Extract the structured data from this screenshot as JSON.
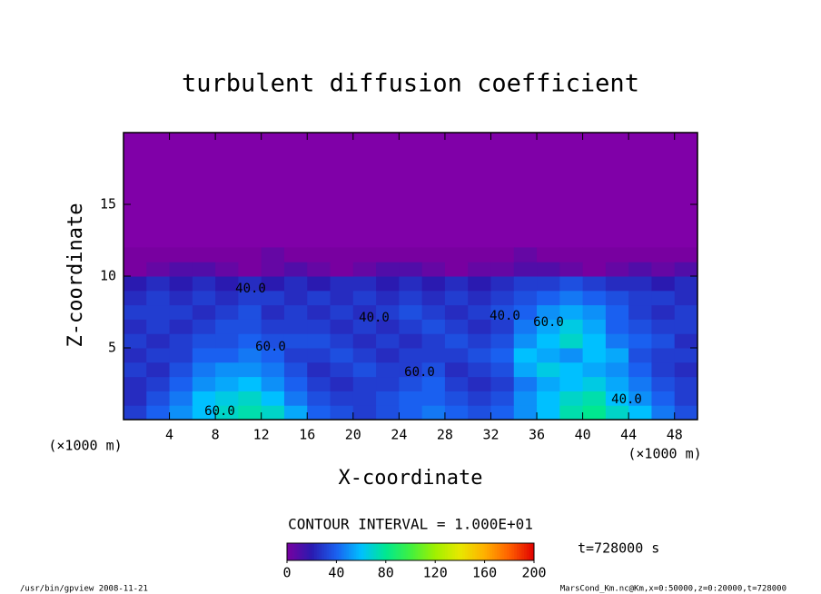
{
  "chart_data": {
    "type": "heatmap",
    "title": "turbulent diffusion coefficient",
    "x_label": "X-coordinate",
    "y_label": "Z-coordinate",
    "x_unit": "(×1000 m)",
    "y_unit": "(×1000 m)",
    "xlim": [
      0,
      50
    ],
    "ylim": [
      0,
      20
    ],
    "xticks": [
      4,
      8,
      12,
      16,
      20,
      24,
      28,
      32,
      36,
      40,
      44,
      48
    ],
    "yticks": [
      5,
      10,
      15
    ],
    "x": [
      1,
      3,
      5,
      7,
      9,
      11,
      13,
      15,
      17,
      19,
      21,
      23,
      25,
      27,
      29,
      31,
      33,
      35,
      37,
      39,
      41,
      43,
      45,
      47,
      49
    ],
    "z": [
      0.5,
      1.5,
      2.5,
      3.5,
      4.5,
      5.5,
      6.5,
      7.5,
      8.5,
      9.5,
      10.5,
      11.5
    ],
    "values": [
      [
        30,
        40,
        50,
        60,
        70,
        75,
        70,
        55,
        40,
        35,
        30,
        35,
        40,
        45,
        40,
        35,
        40,
        50,
        60,
        75,
        80,
        70,
        60,
        45,
        35
      ],
      [
        25,
        35,
        45,
        60,
        65,
        70,
        60,
        45,
        35,
        30,
        30,
        35,
        40,
        40,
        35,
        30,
        35,
        50,
        60,
        70,
        75,
        60,
        50,
        40,
        30
      ],
      [
        25,
        30,
        40,
        50,
        55,
        60,
        50,
        40,
        30,
        25,
        30,
        30,
        35,
        40,
        30,
        25,
        30,
        45,
        55,
        60,
        65,
        55,
        45,
        35,
        30
      ],
      [
        30,
        25,
        35,
        45,
        50,
        50,
        45,
        35,
        25,
        30,
        35,
        30,
        30,
        35,
        25,
        30,
        35,
        55,
        65,
        60,
        55,
        50,
        40,
        30,
        25
      ],
      [
        25,
        30,
        30,
        40,
        40,
        45,
        40,
        30,
        30,
        35,
        30,
        25,
        30,
        30,
        30,
        35,
        40,
        60,
        55,
        50,
        60,
        55,
        35,
        30,
        30
      ],
      [
        30,
        25,
        30,
        35,
        35,
        40,
        35,
        35,
        35,
        30,
        25,
        30,
        25,
        30,
        35,
        30,
        35,
        50,
        60,
        70,
        60,
        45,
        40,
        35,
        25
      ],
      [
        25,
        30,
        25,
        30,
        35,
        35,
        30,
        30,
        30,
        25,
        30,
        25,
        30,
        35,
        30,
        25,
        30,
        45,
        55,
        65,
        55,
        40,
        35,
        30,
        30
      ],
      [
        30,
        30,
        30,
        25,
        30,
        35,
        25,
        30,
        25,
        30,
        25,
        30,
        35,
        30,
        25,
        30,
        35,
        40,
        50,
        55,
        50,
        40,
        30,
        25,
        30
      ],
      [
        25,
        30,
        25,
        30,
        25,
        30,
        30,
        25,
        30,
        25,
        30,
        25,
        30,
        25,
        30,
        25,
        30,
        35,
        40,
        45,
        40,
        35,
        30,
        30,
        25
      ],
      [
        20,
        25,
        20,
        25,
        20,
        25,
        20,
        25,
        20,
        25,
        25,
        20,
        25,
        20,
        25,
        20,
        25,
        30,
        30,
        35,
        30,
        25,
        25,
        20,
        25
      ],
      [
        0,
        5,
        10,
        10,
        5,
        0,
        5,
        10,
        5,
        0,
        5,
        10,
        10,
        5,
        0,
        5,
        5,
        10,
        10,
        5,
        0,
        5,
        10,
        5,
        10
      ],
      [
        0,
        0,
        0,
        0,
        0,
        0,
        5,
        0,
        0,
        0,
        0,
        0,
        0,
        0,
        0,
        0,
        0,
        5,
        0,
        0,
        0,
        0,
        0,
        0,
        0
      ]
    ],
    "clim": [
      0,
      200
    ],
    "colormap": [
      "#7800a0",
      "#2a1ab0",
      "#1a60f0",
      "#00c0ff",
      "#00e890",
      "#40f040",
      "#a0f000",
      "#e8e800",
      "#ffb000",
      "#ff6000",
      "#e00000"
    ],
    "background_color": "#8000a8",
    "contour_labels": [
      "60.0",
      "40.0",
      "60.0",
      "40.0",
      "40.0",
      "60.0",
      "60.0",
      "40.0"
    ],
    "contour_interval": "CONTOUR INTERVAL = 1.000E+01",
    "colorbar_ticks": [
      0,
      40,
      80,
      120,
      160,
      200
    ],
    "time_label": "t=728000 s",
    "footer_left": "/usr/bin/gpview   2008-11-21",
    "footer_right": "MarsCond_Km.nc@Km,x=0:50000,z=0:20000,t=728000"
  }
}
